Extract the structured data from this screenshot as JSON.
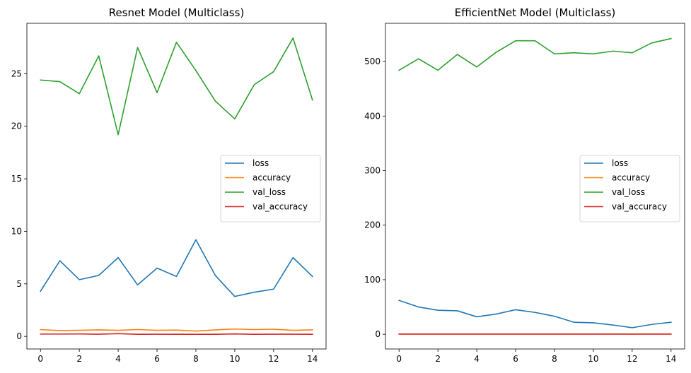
{
  "chart_data": [
    {
      "type": "line",
      "title": "Resnet Model (Multiclass)",
      "xlabel": "",
      "ylabel": "",
      "x": [
        0,
        1,
        2,
        3,
        4,
        5,
        6,
        7,
        8,
        9,
        10,
        11,
        12,
        13,
        14
      ],
      "xlim": [
        -0.7,
        14.7
      ],
      "ylim": [
        -1.2,
        29.8
      ],
      "xticks": [
        0,
        2,
        4,
        6,
        8,
        10,
        12,
        14
      ],
      "yticks": [
        0,
        5,
        10,
        15,
        20,
        25
      ],
      "grid": false,
      "legend": "center-right",
      "series": [
        {
          "name": "loss",
          "color": "#1f77b4",
          "values": [
            4.3,
            7.2,
            5.4,
            5.8,
            7.5,
            4.9,
            6.5,
            5.7,
            9.2,
            5.8,
            3.8,
            4.2,
            4.5,
            7.5,
            5.7
          ]
        },
        {
          "name": "accuracy",
          "color": "#ff7f0e",
          "values": [
            0.65,
            0.55,
            0.58,
            0.62,
            0.58,
            0.65,
            0.58,
            0.6,
            0.5,
            0.62,
            0.7,
            0.65,
            0.68,
            0.58,
            0.62
          ]
        },
        {
          "name": "val_loss",
          "color": "#2ca02c",
          "values": [
            24.4,
            24.25,
            23.1,
            26.7,
            19.2,
            27.5,
            23.2,
            28.0,
            25.3,
            22.4,
            20.7,
            23.95,
            25.2,
            28.4,
            22.5
          ]
        },
        {
          "name": "val_accuracy",
          "color": "#d62728",
          "values": [
            0.22,
            0.22,
            0.23,
            0.21,
            0.26,
            0.2,
            0.21,
            0.2,
            0.2,
            0.2,
            0.23,
            0.2,
            0.21,
            0.21,
            0.2
          ]
        }
      ]
    },
    {
      "type": "line",
      "title": "EfficientNet Model (Multiclass)",
      "xlabel": "",
      "ylabel": "",
      "x": [
        0,
        1,
        2,
        3,
        4,
        5,
        6,
        7,
        8,
        9,
        10,
        11,
        12,
        13,
        14
      ],
      "xlim": [
        -0.7,
        14.7
      ],
      "ylim": [
        -27,
        570
      ],
      "xticks": [
        0,
        2,
        4,
        6,
        8,
        10,
        12,
        14
      ],
      "yticks": [
        0,
        100,
        200,
        300,
        400,
        500
      ],
      "grid": false,
      "legend": "center-right",
      "series": [
        {
          "name": "loss",
          "color": "#1f77b4",
          "values": [
            62,
            50,
            44,
            43,
            32,
            37,
            45,
            40,
            33,
            22,
            21,
            17,
            12,
            18,
            22
          ]
        },
        {
          "name": "accuracy",
          "color": "#ff7f0e",
          "values": [
            0.4,
            0.45,
            0.45,
            0.45,
            0.45,
            0.45,
            0.45,
            0.45,
            0.45,
            0.45,
            0.45,
            0.45,
            0.45,
            0.45,
            0.45
          ]
        },
        {
          "name": "val_loss",
          "color": "#2ca02c",
          "values": [
            484,
            505,
            484,
            513,
            490,
            517,
            538,
            538,
            514,
            516,
            514,
            519,
            516,
            534,
            542
          ]
        },
        {
          "name": "val_accuracy",
          "color": "#d62728",
          "values": [
            0.3,
            0.3,
            0.3,
            0.3,
            0.3,
            0.3,
            0.3,
            0.3,
            0.3,
            0.3,
            0.3,
            0.3,
            0.3,
            0.3,
            0.3
          ]
        }
      ]
    }
  ]
}
